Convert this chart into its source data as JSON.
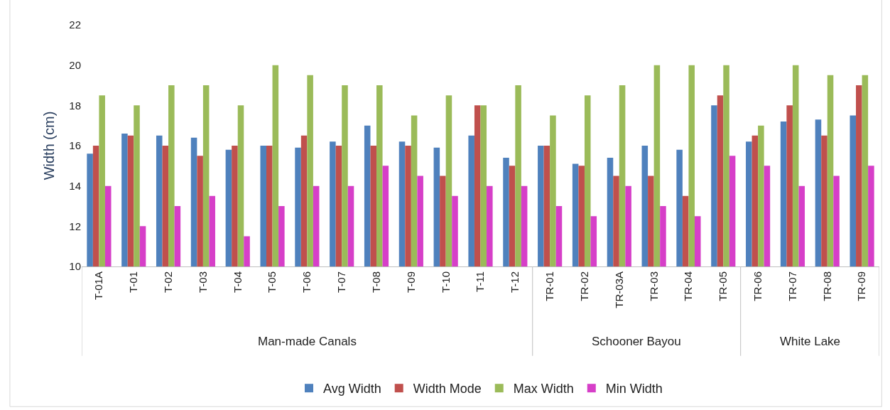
{
  "chart_data": {
    "type": "bar",
    "ylabel": "Width (cm)",
    "categories": [
      "T-01A",
      "T-01",
      "T-02",
      "T-03",
      "T-04",
      "T-05",
      "T-06",
      "T-07",
      "T-08",
      "T-09",
      "T-10",
      "T-11",
      "T-12",
      "TR-01",
      "TR-02",
      "TR-03A",
      "TR-03",
      "TR-04",
      "TR-05",
      "TR-06",
      "TR-07",
      "TR-08",
      "TR-09"
    ],
    "series": [
      {
        "name": "Avg Width",
        "color": "#4f81bd",
        "values": [
          15.6,
          16.6,
          16.5,
          16.4,
          15.8,
          16,
          15.9,
          16.2,
          17,
          16.2,
          15.9,
          16.5,
          15.4,
          16,
          15.1,
          15.4,
          16,
          15.8,
          18,
          16.2,
          17.2,
          17.3,
          17.5
        ]
      },
      {
        "name": "Width Mode",
        "color": "#c0504d",
        "values": [
          16,
          16.5,
          16,
          15.5,
          16,
          16,
          16.5,
          16,
          16,
          16,
          14.5,
          18,
          15,
          16,
          15,
          14.5,
          14.5,
          13.5,
          18.5,
          16.5,
          18,
          16.5,
          19
        ]
      },
      {
        "name": "Max Width",
        "color": "#9bbb59",
        "values": [
          18.5,
          18,
          19,
          19,
          18,
          20,
          19.5,
          19,
          19,
          17.5,
          18.5,
          18,
          19,
          17.5,
          18.5,
          19,
          20,
          20,
          20,
          17,
          20,
          19.5,
          19.5
        ]
      },
      {
        "name": "Min Width",
        "color": "#d63fc8",
        "values": [
          14,
          12,
          13,
          13.5,
          11.5,
          13,
          14,
          14,
          15,
          14.5,
          13.5,
          14,
          14,
          13,
          12.5,
          14,
          13,
          12.5,
          15.5,
          15,
          14,
          14.5,
          15
        ]
      }
    ],
    "annotations": [
      "Man-made Canals",
      "Schooner Bayou",
      "White Lake"
    ],
    "ylim": [
      10,
      22
    ],
    "yticks": [
      10,
      12,
      14,
      16,
      18,
      20,
      22
    ],
    "grid": false,
    "legend": "bottom"
  }
}
